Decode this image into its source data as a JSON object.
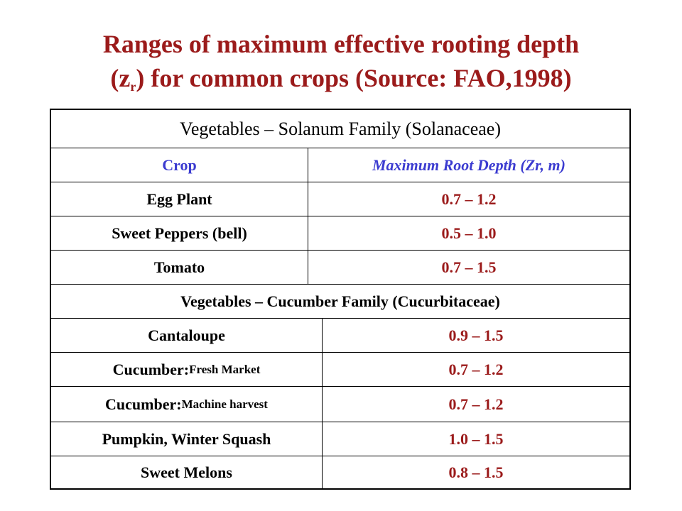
{
  "title": {
    "line1": "Ranges of maximum effective rooting depth",
    "line2_prefix": "(z",
    "line2_sub": "r",
    "line2_suffix": ") for common crops (Source: FAO,1998)"
  },
  "table": {
    "section1_title": "Vegetables – Solanum Family (Solanaceae)",
    "header": {
      "crop": "Crop",
      "depth": "Maximum Root Depth (Zr, m)"
    },
    "section1_rows": [
      {
        "crop": "Egg Plant",
        "depth": "0.7 – 1.2"
      },
      {
        "crop": "Sweet Peppers (bell)",
        "depth": "0.5 – 1.0"
      },
      {
        "crop": "Tomato",
        "depth": "0.7 – 1.5"
      }
    ],
    "section2_title": "Vegetables – Cucumber Family (Cucurbitaceae)",
    "section2_rows": [
      {
        "crop": "Cantaloupe",
        "crop_detail": "",
        "depth": "0.9 – 1.5"
      },
      {
        "crop": "Cucumber:",
        "crop_detail": "Fresh Market",
        "depth": "0.7 – 1.2"
      },
      {
        "crop": "Cucumber:",
        "crop_detail": "Machine harvest",
        "depth": "0.7 – 1.2"
      },
      {
        "crop": "Pumpkin, Winter Squash",
        "crop_detail": "",
        "depth": "1.0 – 1.5"
      },
      {
        "crop": "Sweet Melons",
        "crop_detail": "",
        "depth": "0.8 – 1.5"
      }
    ]
  },
  "colors": {
    "title": "#9b1b1b",
    "values": "#9b1b1b",
    "header": "#3b3bd0"
  }
}
